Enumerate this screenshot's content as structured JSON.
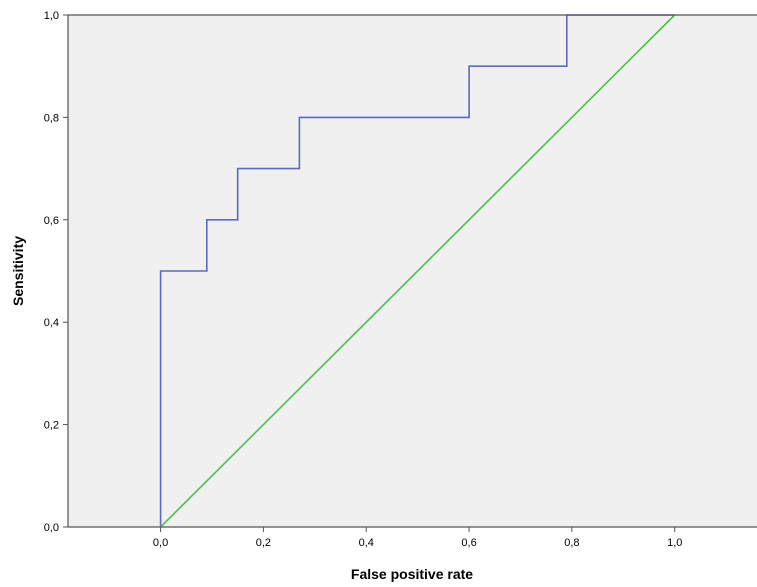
{
  "chart_data": {
    "type": "line",
    "title": "",
    "xlabel": "False positive rate",
    "ylabel": "Sensitivity",
    "xlim": [
      -0.18,
      1.16
    ],
    "ylim": [
      0,
      1
    ],
    "x_ticks": [
      0,
      0.2,
      0.4,
      0.6,
      0.8,
      1.0
    ],
    "x_tick_labels": [
      "0,0",
      "0,2",
      "0,4",
      "0,6",
      "0,8",
      "1,0"
    ],
    "y_ticks": [
      0,
      0.2,
      0.4,
      0.6,
      0.8,
      1.0
    ],
    "y_tick_labels": [
      "0,0",
      "0,2",
      "0,4",
      "0,6",
      "0,8",
      "1,0"
    ],
    "grid": false,
    "legend": "none",
    "plot_background": "#f0f0f0",
    "series": [
      {
        "color": "#5a6bbf",
        "step": true,
        "x": [
          0,
          0,
          0.09,
          0.09,
          0.15,
          0.15,
          0.27,
          0.27,
          0.6,
          0.6,
          0.79,
          0.79,
          1.0
        ],
        "y": [
          0,
          0.5,
          0.5,
          0.6,
          0.6,
          0.7,
          0.7,
          0.8,
          0.8,
          0.9,
          0.9,
          1.0,
          1.0
        ]
      },
      {
        "color": "#4cbf4c",
        "step": false,
        "x": [
          0,
          1.0
        ],
        "y": [
          0,
          1.0
        ]
      }
    ]
  }
}
